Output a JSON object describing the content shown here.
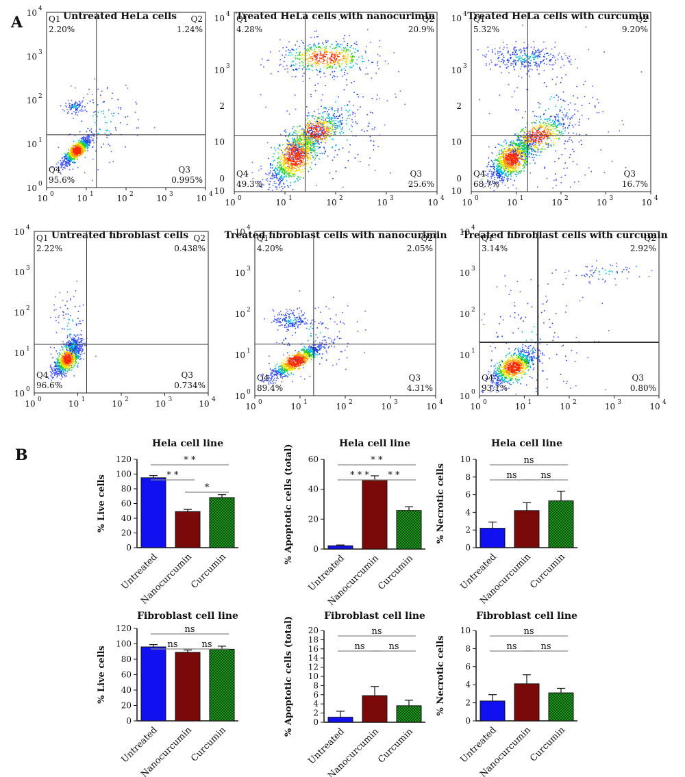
{
  "panel_labels": [
    "A",
    "B"
  ],
  "colors": {
    "untreated": "#1010f0",
    "nanocurcumin": "#7a0a0a",
    "curcumin": "#1f9a1f",
    "pattern_dark": "#0d4d0d"
  },
  "chart_data": [
    {
      "type": "scatter",
      "title": "Untreated HeLa cells",
      "quadrant_labels": [
        "Q1",
        "Q2",
        "Q3",
        "Q4"
      ],
      "quadrants": {
        "Q1": "2.20%",
        "Q2": "1.24%",
        "Q3": "0.995%",
        "Q4": "95.6%"
      },
      "gate_x": 18,
      "gate_y": 16,
      "xscale": "log",
      "yscale": "log",
      "xlim": [
        1,
        10000
      ],
      "ylim": [
        1,
        10000
      ],
      "xticks": [
        {
          "base": "10",
          "exp": "0"
        },
        {
          "base": "10",
          "exp": "1"
        },
        {
          "base": "10",
          "exp": "2"
        },
        {
          "base": "10",
          "exp": "3"
        },
        {
          "base": "10",
          "exp": "4"
        }
      ],
      "yticks": [
        {
          "base": "10",
          "exp": "0"
        },
        {
          "base": "10",
          "exp": "1"
        },
        {
          "base": "10",
          "exp": "2"
        },
        {
          "base": "10",
          "exp": "3"
        },
        {
          "base": "10",
          "exp": "4"
        }
      ]
    },
    {
      "type": "scatter",
      "title": "Treated HeLa cells with nanocurimin",
      "quadrant_labels": [
        "Q1",
        "Q2",
        "Q3",
        "Q4"
      ],
      "quadrants": {
        "Q1": "4.28%",
        "Q2": "20.9%",
        "Q3": "25.6%",
        "Q4": "49.3%"
      },
      "gate_x": 25,
      "gate_y": 18,
      "xscale": "log",
      "yscale": "log",
      "xlim": [
        1,
        10000
      ],
      "ylim": [
        1,
        10000
      ],
      "xticks": [
        {
          "base": "10",
          "exp": "0"
        },
        {
          "base": "10",
          "exp": "1"
        },
        {
          "base": "10",
          "exp": "2"
        },
        {
          "base": "10",
          "exp": "3"
        },
        {
          "base": "10",
          "exp": "4"
        }
      ],
      "yticks": [
        {
          "base": "10",
          "exp": ""
        },
        {
          "base": "0",
          "exp": ""
        },
        {
          "base": "10",
          "exp": ""
        },
        {
          "base": "2",
          "exp": ""
        },
        {
          "base": "10",
          "exp": "3"
        },
        {
          "base": "10",
          "exp": "4"
        }
      ]
    },
    {
      "type": "scatter",
      "title": "Treated HeLa cells with curcumin",
      "quadrant_labels": [
        "Q1",
        "Q2",
        "Q3",
        "Q4"
      ],
      "quadrants": {
        "Q1": "5.32%",
        "Q2": "9.20%",
        "Q3": "16.7%",
        "Q4": "68.7%"
      },
      "gate_x": 18,
      "gate_y": 18,
      "xscale": "log",
      "yscale": "log",
      "xlim": [
        1,
        10000
      ],
      "ylim": [
        1,
        10000
      ],
      "xticks": [
        {
          "base": "10",
          "exp": "0"
        },
        {
          "base": "10",
          "exp": "1"
        },
        {
          "base": "10",
          "exp": "2"
        },
        {
          "base": "10",
          "exp": "3"
        },
        {
          "base": "10",
          "exp": "4"
        }
      ],
      "yticks": [
        {
          "base": "10",
          "exp": ""
        },
        {
          "base": "0",
          "exp": ""
        },
        {
          "base": "10",
          "exp": ""
        },
        {
          "base": "2",
          "exp": ""
        },
        {
          "base": "10",
          "exp": "3"
        },
        {
          "base": "10",
          "exp": "4"
        }
      ]
    },
    {
      "type": "scatter",
      "title": "Untreated fibroblast cells",
      "quadrant_labels": [
        "Q1",
        "Q2",
        "Q3",
        "Q4"
      ],
      "quadrants": {
        "Q1": "2.22%",
        "Q2": "0.438%",
        "Q3": "0.734%",
        "Q4": "96.6%"
      },
      "gate_x": 16,
      "gate_y": 16,
      "xscale": "log",
      "yscale": "log",
      "xlim": [
        1,
        10000
      ],
      "ylim": [
        1,
        10000
      ],
      "xticks": [
        {
          "base": "10",
          "exp": "0"
        },
        {
          "base": "10",
          "exp": "1"
        },
        {
          "base": "10",
          "exp": "2"
        },
        {
          "base": "10",
          "exp": "3"
        },
        {
          "base": "10",
          "exp": "4"
        }
      ],
      "yticks": [
        {
          "base": "10",
          "exp": "0"
        },
        {
          "base": "10",
          "exp": "1"
        },
        {
          "base": "10",
          "exp": "2"
        },
        {
          "base": "10",
          "exp": "3"
        },
        {
          "base": "10",
          "exp": "4"
        }
      ]
    },
    {
      "type": "scatter",
      "title": "Treated fibroblast cells with nanocurimin",
      "quadrant_labels": [
        "Q1",
        "Q2",
        "Q3",
        "Q4"
      ],
      "quadrants": {
        "Q1": "4.20%",
        "Q2": "2.05%",
        "Q3": "4.31%",
        "Q4": "89.4%"
      },
      "gate_x": 20,
      "gate_y": 18,
      "xscale": "log",
      "yscale": "log",
      "xlim": [
        1,
        10000
      ],
      "ylim": [
        1,
        10000
      ],
      "xticks": [
        {
          "base": "10",
          "exp": "0"
        },
        {
          "base": "10",
          "exp": "1"
        },
        {
          "base": "10",
          "exp": "2"
        },
        {
          "base": "10",
          "exp": "3"
        },
        {
          "base": "10",
          "exp": "4"
        }
      ],
      "yticks": [
        {
          "base": "10",
          "exp": "0"
        },
        {
          "base": "10",
          "exp": "1"
        },
        {
          "base": "10",
          "exp": "2"
        },
        {
          "base": "10",
          "exp": "3"
        },
        {
          "base": "10",
          "exp": "4"
        }
      ]
    },
    {
      "type": "scatter",
      "title": "Treated fibroblast cells with curcumin",
      "quadrant_labels": [
        "Q1",
        "Q2",
        "Q3",
        "Q4"
      ],
      "quadrants": {
        "Q1": "3.14%",
        "Q2": "2.92%",
        "Q3": "0.80%",
        "Q4": "93.1%"
      },
      "gate_x": 20,
      "gate_y": 20,
      "xscale": "log",
      "yscale": "log",
      "xlim": [
        1,
        10000
      ],
      "ylim": [
        1,
        10000
      ],
      "xticks": [
        {
          "base": "10",
          "exp": "0"
        },
        {
          "base": "10",
          "exp": "1"
        },
        {
          "base": "10",
          "exp": "2"
        },
        {
          "base": "10",
          "exp": "3"
        },
        {
          "base": "10",
          "exp": "4"
        }
      ],
      "yticks": [
        {
          "base": "10",
          "exp": "0"
        },
        {
          "base": "10",
          "exp": "1"
        },
        {
          "base": "10",
          "exp": "2"
        },
        {
          "base": "10",
          "exp": "3"
        },
        {
          "base": "10",
          "exp": "4"
        }
      ]
    },
    {
      "type": "bar",
      "title": "Hela cell line",
      "ylabel": "% Live cells",
      "categories": [
        "Untreated",
        "Nanocurcumin",
        "Curcumin"
      ],
      "values": [
        95,
        49,
        68
      ],
      "errors": [
        3,
        3,
        4
      ],
      "ylim": [
        0,
        120
      ],
      "yticks": [
        0,
        20,
        40,
        60,
        80,
        100,
        120
      ],
      "comparisons": [
        {
          "from": 0,
          "to": 1,
          "label": "* *"
        },
        {
          "from": 0,
          "to": 2,
          "label": "* *"
        },
        {
          "from": 1,
          "to": 2,
          "label": "*"
        }
      ]
    },
    {
      "type": "bar",
      "title": "Hela cell line",
      "ylabel": "% Apoptotic cells (total)",
      "categories": [
        "Untreated",
        "Nanocurcumin",
        "Curcumin"
      ],
      "values": [
        2.2,
        46,
        25.8
      ],
      "errors": [
        0.5,
        3,
        2.5
      ],
      "ylim": [
        0,
        60
      ],
      "yticks": [
        0,
        20,
        40,
        60
      ],
      "comparisons": [
        {
          "from": 0,
          "to": 1,
          "label": "* * *"
        },
        {
          "from": 0,
          "to": 2,
          "label": "* *"
        },
        {
          "from": 1,
          "to": 2,
          "label": "* *"
        }
      ]
    },
    {
      "type": "bar",
      "title": "Hela cell line",
      "ylabel": "% Necrotic cells",
      "categories": [
        "Untreated",
        "Nanocurcumin",
        "Curcumin"
      ],
      "values": [
        2.2,
        4.2,
        5.3
      ],
      "errors": [
        0.7,
        0.9,
        1.1
      ],
      "ylim": [
        0,
        10
      ],
      "yticks": [
        0,
        2,
        4,
        6,
        8,
        10
      ],
      "comparisons": [
        {
          "from": 0,
          "to": 1,
          "label": "ns"
        },
        {
          "from": 0,
          "to": 2,
          "label": "ns"
        },
        {
          "from": 1,
          "to": 2,
          "label": "ns"
        }
      ]
    },
    {
      "type": "bar",
      "title": "Fibroblast cell line",
      "ylabel": "% Live cells",
      "categories": [
        "Untreated",
        "Nanocurcumin",
        "Curcumin"
      ],
      "values": [
        96,
        89,
        93
      ],
      "errors": [
        3,
        3,
        4
      ],
      "ylim": [
        0,
        120
      ],
      "yticks": [
        0,
        20,
        40,
        60,
        80,
        100,
        120
      ],
      "comparisons": [
        {
          "from": 0,
          "to": 1,
          "label": "ns"
        },
        {
          "from": 0,
          "to": 2,
          "label": "ns"
        },
        {
          "from": 1,
          "to": 2,
          "label": "ns"
        }
      ]
    },
    {
      "type": "bar",
      "title": "Fibroblast cell line",
      "ylabel": "% Apoptotic cells (total)",
      "categories": [
        "Untreated",
        "Nanocurcumin",
        "Curcumin"
      ],
      "values": [
        1.1,
        5.8,
        3.6
      ],
      "errors": [
        1.3,
        2,
        1.2
      ],
      "ylim": [
        0,
        20
      ],
      "yticks": [
        0,
        2,
        4,
        6,
        8,
        10,
        12,
        14,
        16,
        18,
        20
      ],
      "comparisons": [
        {
          "from": 0,
          "to": 1,
          "label": "ns"
        },
        {
          "from": 0,
          "to": 2,
          "label": "ns"
        },
        {
          "from": 1,
          "to": 2,
          "label": "ns"
        }
      ]
    },
    {
      "type": "bar",
      "title": "Fibroblast cell line",
      "ylabel": "% Necrotic cells",
      "categories": [
        "Untreated",
        "Nanocurcumin",
        "Curcumin"
      ],
      "values": [
        2.2,
        4.1,
        3.1
      ],
      "errors": [
        0.7,
        1,
        0.5
      ],
      "ylim": [
        0,
        10
      ],
      "yticks": [
        0,
        2,
        4,
        6,
        8,
        10
      ],
      "comparisons": [
        {
          "from": 0,
          "to": 1,
          "label": "ns"
        },
        {
          "from": 0,
          "to": 2,
          "label": "ns"
        },
        {
          "from": 1,
          "to": 2,
          "label": "ns"
        }
      ]
    }
  ]
}
